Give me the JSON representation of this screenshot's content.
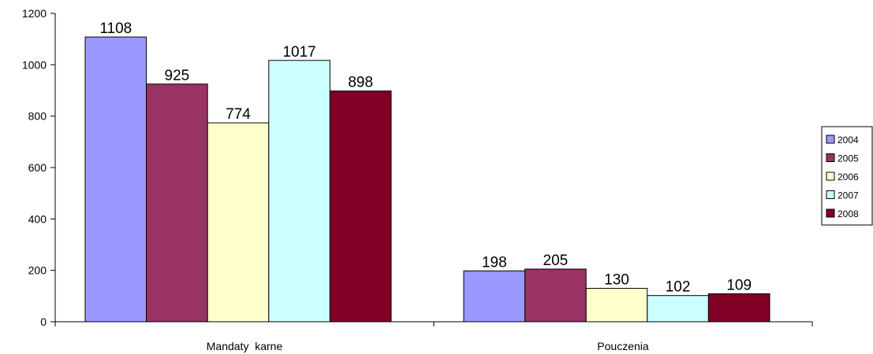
{
  "chart_data": {
    "type": "bar",
    "categories": [
      "Mandaty  karne",
      "Pouczenia"
    ],
    "series": [
      {
        "name": "2004",
        "values": [
          1108,
          198
        ],
        "color": "#9999FF"
      },
      {
        "name": "2005",
        "values": [
          925,
          205
        ],
        "color": "#993366"
      },
      {
        "name": "2006",
        "values": [
          774,
          130
        ],
        "color": "#FFFFCC"
      },
      {
        "name": "2007",
        "values": [
          1017,
          102
        ],
        "color": "#CCFFFF"
      },
      {
        "name": "2008",
        "values": [
          898,
          109
        ],
        "color": "#800026"
      }
    ],
    "ylim": [
      0,
      1200
    ],
    "yticks": [
      0,
      200,
      400,
      600,
      800,
      1000,
      1200
    ],
    "grid": false,
    "legend_position": "right",
    "data_labels": true
  }
}
